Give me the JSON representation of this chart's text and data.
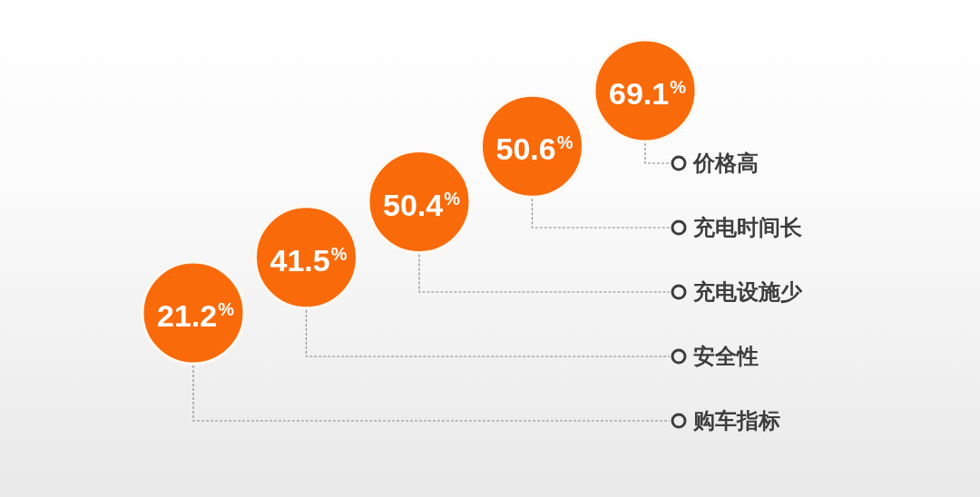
{
  "chart_data": {
    "type": "other",
    "categories": [
      "价格高",
      "充电时间长",
      "充电设施少",
      "安全性",
      "购车指标"
    ],
    "values": [
      69.1,
      50.6,
      50.4,
      41.5,
      21.2
    ],
    "value_labels": [
      "69.1$^{%}$",
      "50.6$^{%}$",
      "50.4$^{%}$",
      "41.5$^{%}$",
      "21.2$^{%}$"
    ],
    "color": "#f96a0a"
  }
}
